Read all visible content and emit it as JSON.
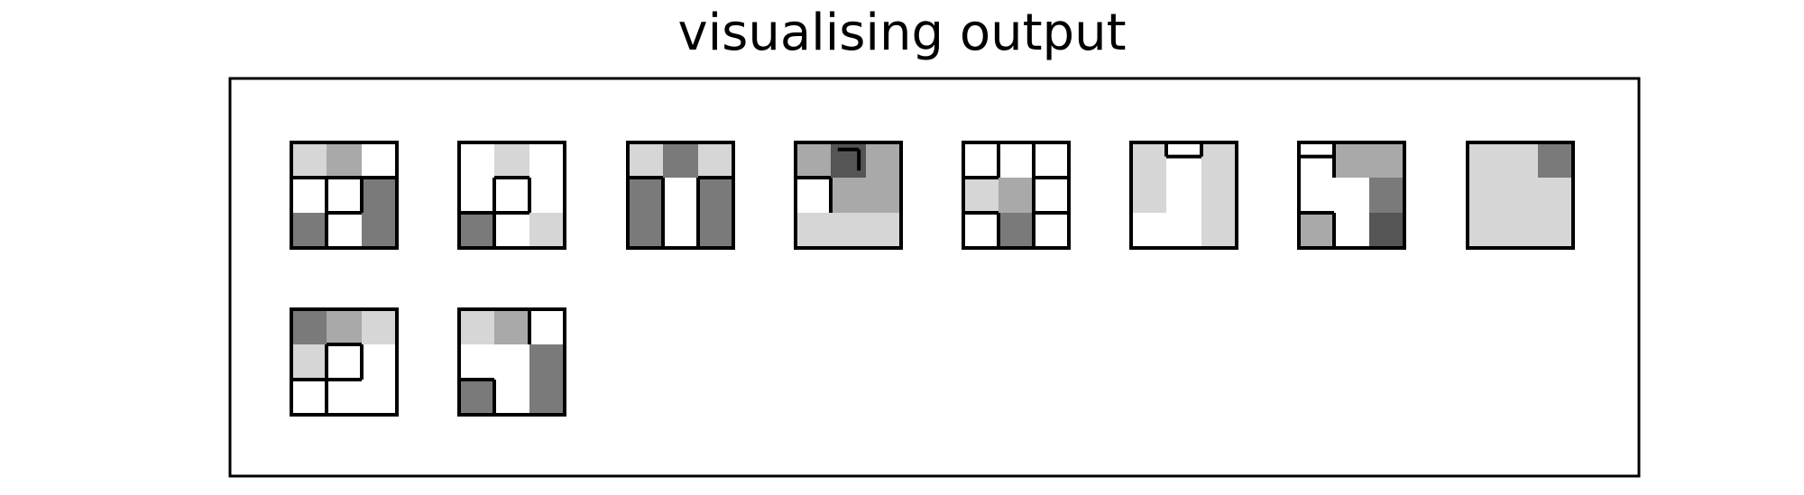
{
  "title": "visualising output",
  "colors": {
    "stroke": "#000000",
    "light": "#d6d6d6",
    "mid": "#a9a9a9",
    "dark": "#7a7a7a",
    "darkest": "#555555",
    "empty": "#ffffff"
  },
  "tiles": [
    {
      "cells": [
        [
          "light",
          "mid",
          "empty"
        ],
        [
          "empty",
          "empty",
          "dark"
        ],
        [
          "dark",
          "empty",
          "dark"
        ]
      ],
      "walls": [
        "0,1,1,1",
        "1,1,2,1",
        "1,2,2,2",
        "1,1,1,2",
        "2,1,2,2",
        "1,2,1,3",
        "2,1,3,1"
      ]
    },
    {
      "cells": [
        [
          "empty",
          "light",
          "empty"
        ],
        [
          "empty",
          "empty",
          "empty"
        ],
        [
          "dark",
          "empty",
          "light"
        ]
      ],
      "walls": [
        "1,1,2,1",
        "1,1,1,2",
        "2,1,2,2",
        "0,2,1,2",
        "1,2,2,2",
        "1,2,1,3"
      ]
    },
    {
      "cells": [
        [
          "light",
          "dark",
          "light"
        ],
        [
          "dark",
          "empty",
          "dark"
        ],
        [
          "dark",
          "empty",
          "dark"
        ]
      ],
      "walls": [
        "1,1,1,3",
        "2,1,2,3",
        "0,1,1,1",
        "2,1,3,1"
      ]
    },
    {
      "cells": [
        [
          "mid",
          "darkest",
          "mid"
        ],
        [
          "empty",
          "mid",
          "mid"
        ],
        [
          "light",
          "light",
          "light"
        ]
      ],
      "walls": [
        "0,1,1,1",
        "1,1,1,2",
        "1.2,0.2,1.8,0.2",
        "1.8,0.2,1.8,0.8"
      ]
    },
    {
      "cells": [
        [
          "empty",
          "empty",
          "empty"
        ],
        [
          "light",
          "mid",
          "empty"
        ],
        [
          "empty",
          "dark",
          "empty"
        ]
      ],
      "walls": [
        "1,0,1,1",
        "2,0,2,1",
        "0,1,1,1",
        "2,1,3,1",
        "2,1,2,2",
        "2,2,3,2",
        "0,2,1,2",
        "1,2,1,3",
        "2,2,2,3"
      ]
    },
    {
      "cells": [
        [
          "light",
          "empty",
          "light"
        ],
        [
          "light",
          "empty",
          "light"
        ],
        [
          "empty",
          "empty",
          "light"
        ]
      ],
      "walls": [
        "1,0,1,0.4",
        "2,0,2,0.4",
        "1,0.4,2,0.4"
      ]
    },
    {
      "cells": [
        [
          "empty",
          "mid",
          "mid"
        ],
        [
          "empty",
          "empty",
          "dark"
        ],
        [
          "mid",
          "empty",
          "darkest"
        ]
      ],
      "walls": [
        "0,0.4,1,0.4",
        "0,0.4,0,0",
        "1,1,1,0",
        "0,2,1,2",
        "1,2,1,3",
        "0,2,0,2.6"
      ]
    },
    {
      "cells": [
        [
          "light",
          "light",
          "dark"
        ],
        [
          "light",
          "light",
          "light"
        ],
        [
          "light",
          "light",
          "light"
        ]
      ],
      "walls": []
    },
    {
      "cells": [
        [
          "dark",
          "mid",
          "light"
        ],
        [
          "light",
          "empty",
          "empty"
        ],
        [
          "empty",
          "empty",
          "empty"
        ]
      ],
      "walls": [
        "1,1,2,1",
        "1,1,1,3",
        "2,1,2,2",
        "1,2,2,2",
        "0,2,1,2"
      ]
    },
    {
      "cells": [
        [
          "light",
          "mid",
          "empty"
        ],
        [
          "empty",
          "empty",
          "dark"
        ],
        [
          "dark",
          "empty",
          "dark"
        ]
      ],
      "walls": [
        "2,0,2,1",
        "0,2,1,2",
        "1,2,1,3"
      ]
    }
  ]
}
